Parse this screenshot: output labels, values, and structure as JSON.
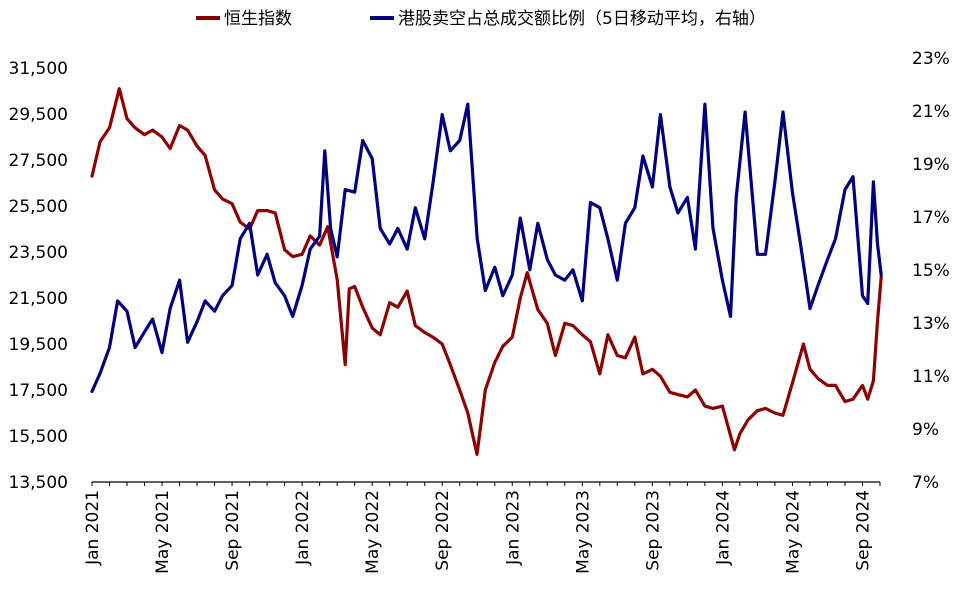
{
  "chart_data": {
    "type": "line",
    "title": "",
    "legend_position": "top",
    "grid": false,
    "x_axis": {
      "start": "2021-01",
      "end": "2024-10",
      "tick_labels": [
        "Jan 2021",
        "May 2021",
        "Sep 2021",
        "Jan 2022",
        "May 2022",
        "Sep 2022",
        "Jan 2023",
        "May 2023",
        "Sep 2023",
        "Jan 2024",
        "May 2024",
        "Sep 2024"
      ]
    },
    "y_left": {
      "min": 13500,
      "max": 31500,
      "tick_labels": [
        "31,500",
        "29,500",
        "27,500",
        "25,500",
        "23,500",
        "21,500",
        "19,500",
        "17,500",
        "15,500",
        "13,500"
      ]
    },
    "y_right": {
      "min": 7,
      "max": 23,
      "tick_labels": [
        "23%",
        "21%",
        "19%",
        "17%",
        "15%",
        "13%",
        "11%",
        "9%",
        "7%"
      ]
    },
    "series": [
      {
        "name": "恒生指数",
        "axis": "left",
        "color": "#8B0000",
        "points": [
          [
            "2021-01-01",
            26800
          ],
          [
            "2021-01-15",
            28300
          ],
          [
            "2021-02-01",
            28900
          ],
          [
            "2021-02-18",
            30600
          ],
          [
            "2021-03-01",
            29300
          ],
          [
            "2021-03-15",
            28900
          ],
          [
            "2021-04-01",
            28600
          ],
          [
            "2021-04-15",
            28800
          ],
          [
            "2021-05-01",
            28500
          ],
          [
            "2021-05-15",
            28000
          ],
          [
            "2021-06-01",
            29000
          ],
          [
            "2021-06-15",
            28800
          ],
          [
            "2021-07-01",
            28100
          ],
          [
            "2021-07-15",
            27700
          ],
          [
            "2021-08-01",
            26200
          ],
          [
            "2021-08-15",
            25800
          ],
          [
            "2021-09-01",
            25600
          ],
          [
            "2021-09-15",
            24800
          ],
          [
            "2021-10-01",
            24500
          ],
          [
            "2021-10-15",
            25300
          ],
          [
            "2021-11-01",
            25300
          ],
          [
            "2021-11-15",
            25200
          ],
          [
            "2021-12-01",
            23600
          ],
          [
            "2021-12-15",
            23300
          ],
          [
            "2022-01-01",
            23400
          ],
          [
            "2022-01-15",
            24200
          ],
          [
            "2022-02-01",
            23800
          ],
          [
            "2022-02-15",
            24600
          ],
          [
            "2022-03-01",
            22300
          ],
          [
            "2022-03-15",
            18600
          ],
          [
            "2022-03-22",
            21900
          ],
          [
            "2022-04-01",
            22000
          ],
          [
            "2022-04-15",
            21100
          ],
          [
            "2022-05-01",
            20200
          ],
          [
            "2022-05-15",
            19900
          ],
          [
            "2022-06-01",
            21300
          ],
          [
            "2022-06-15",
            21100
          ],
          [
            "2022-07-01",
            21800
          ],
          [
            "2022-07-15",
            20300
          ],
          [
            "2022-08-01",
            20000
          ],
          [
            "2022-08-15",
            19800
          ],
          [
            "2022-09-01",
            19500
          ],
          [
            "2022-09-15",
            18600
          ],
          [
            "2022-10-01",
            17500
          ],
          [
            "2022-10-15",
            16500
          ],
          [
            "2022-10-31",
            14700
          ],
          [
            "2022-11-15",
            17500
          ],
          [
            "2022-12-01",
            18700
          ],
          [
            "2022-12-15",
            19400
          ],
          [
            "2023-01-01",
            19800
          ],
          [
            "2023-01-15",
            21500
          ],
          [
            "2023-01-27",
            22600
          ],
          [
            "2023-02-15",
            21000
          ],
          [
            "2023-03-01",
            20400
          ],
          [
            "2023-03-15",
            19000
          ],
          [
            "2023-04-01",
            20400
          ],
          [
            "2023-04-15",
            20300
          ],
          [
            "2023-05-01",
            19900
          ],
          [
            "2023-05-15",
            19600
          ],
          [
            "2023-06-01",
            18200
          ],
          [
            "2023-06-15",
            19900
          ],
          [
            "2023-07-01",
            19000
          ],
          [
            "2023-07-15",
            18900
          ],
          [
            "2023-08-01",
            19800
          ],
          [
            "2023-08-15",
            18200
          ],
          [
            "2023-09-01",
            18400
          ],
          [
            "2023-09-15",
            18100
          ],
          [
            "2023-10-01",
            17400
          ],
          [
            "2023-10-15",
            17300
          ],
          [
            "2023-11-01",
            17200
          ],
          [
            "2023-11-15",
            17500
          ],
          [
            "2023-12-01",
            16800
          ],
          [
            "2023-12-15",
            16700
          ],
          [
            "2024-01-01",
            16800
          ],
          [
            "2024-01-22",
            14900
          ],
          [
            "2024-02-01",
            15600
          ],
          [
            "2024-02-15",
            16200
          ],
          [
            "2024-03-01",
            16600
          ],
          [
            "2024-03-15",
            16700
          ],
          [
            "2024-04-01",
            16500
          ],
          [
            "2024-04-15",
            16400
          ],
          [
            "2024-05-01",
            17800
          ],
          [
            "2024-05-20",
            19500
          ],
          [
            "2024-06-01",
            18400
          ],
          [
            "2024-06-15",
            18000
          ],
          [
            "2024-07-01",
            17700
          ],
          [
            "2024-07-15",
            17700
          ],
          [
            "2024-08-01",
            17000
          ],
          [
            "2024-08-15",
            17100
          ],
          [
            "2024-09-01",
            17700
          ],
          [
            "2024-09-10",
            17100
          ],
          [
            "2024-09-20",
            17900
          ],
          [
            "2024-09-27",
            20500
          ],
          [
            "2024-10-03",
            22400
          ]
        ]
      },
      {
        "name": "港股卖空占总成交额比例（5日移动平均，右轴）",
        "axis": "right",
        "color": "#00007F",
        "points": [
          [
            "2021-01-01",
            10.5
          ],
          [
            "2021-01-15",
            11.2
          ],
          [
            "2021-02-01",
            12.2
          ],
          [
            "2021-02-15",
            14.0
          ],
          [
            "2021-03-01",
            13.6
          ],
          [
            "2021-03-15",
            12.2
          ],
          [
            "2021-04-01",
            12.8
          ],
          [
            "2021-04-15",
            13.3
          ],
          [
            "2021-05-01",
            12.0
          ],
          [
            "2021-05-15",
            13.7
          ],
          [
            "2021-06-01",
            14.8
          ],
          [
            "2021-06-15",
            12.4
          ],
          [
            "2021-07-01",
            13.2
          ],
          [
            "2021-07-15",
            14.0
          ],
          [
            "2021-08-01",
            13.6
          ],
          [
            "2021-08-15",
            14.2
          ],
          [
            "2021-09-01",
            14.6
          ],
          [
            "2021-09-15",
            16.4
          ],
          [
            "2021-10-01",
            17.0
          ],
          [
            "2021-10-15",
            15.0
          ],
          [
            "2021-11-01",
            15.8
          ],
          [
            "2021-11-15",
            14.7
          ],
          [
            "2021-12-01",
            14.2
          ],
          [
            "2021-12-15",
            13.4
          ],
          [
            "2022-01-01",
            14.6
          ],
          [
            "2022-01-15",
            16.0
          ],
          [
            "2022-02-01",
            16.5
          ],
          [
            "2022-02-10",
            19.8
          ],
          [
            "2022-02-20",
            16.8
          ],
          [
            "2022-03-01",
            15.7
          ],
          [
            "2022-03-15",
            18.3
          ],
          [
            "2022-04-01",
            18.2
          ],
          [
            "2022-04-15",
            20.2
          ],
          [
            "2022-05-01",
            19.5
          ],
          [
            "2022-05-15",
            16.8
          ],
          [
            "2022-06-01",
            16.2
          ],
          [
            "2022-06-15",
            16.8
          ],
          [
            "2022-07-01",
            16.0
          ],
          [
            "2022-07-15",
            17.6
          ],
          [
            "2022-08-01",
            16.4
          ],
          [
            "2022-08-15",
            18.5
          ],
          [
            "2022-09-01",
            21.2
          ],
          [
            "2022-09-15",
            19.8
          ],
          [
            "2022-10-01",
            20.2
          ],
          [
            "2022-10-15",
            21.6
          ],
          [
            "2022-11-01",
            16.4
          ],
          [
            "2022-11-15",
            14.4
          ],
          [
            "2022-12-01",
            15.3
          ],
          [
            "2022-12-15",
            14.2
          ],
          [
            "2023-01-01",
            15.0
          ],
          [
            "2023-01-15",
            17.2
          ],
          [
            "2023-02-01",
            15.2
          ],
          [
            "2023-02-15",
            17.0
          ],
          [
            "2023-03-01",
            15.6
          ],
          [
            "2023-03-15",
            15.0
          ],
          [
            "2023-04-01",
            14.8
          ],
          [
            "2023-04-15",
            15.2
          ],
          [
            "2023-05-01",
            14.0
          ],
          [
            "2023-05-15",
            17.8
          ],
          [
            "2023-06-01",
            17.6
          ],
          [
            "2023-06-15",
            16.4
          ],
          [
            "2023-07-01",
            14.8
          ],
          [
            "2023-07-15",
            17.0
          ],
          [
            "2023-08-01",
            17.6
          ],
          [
            "2023-08-15",
            19.6
          ],
          [
            "2023-09-01",
            18.4
          ],
          [
            "2023-09-15",
            21.2
          ],
          [
            "2023-10-01",
            18.4
          ],
          [
            "2023-10-15",
            17.4
          ],
          [
            "2023-11-01",
            18.0
          ],
          [
            "2023-11-15",
            16.0
          ],
          [
            "2023-12-01",
            21.6
          ],
          [
            "2023-12-15",
            16.8
          ],
          [
            "2024-01-01",
            14.8
          ],
          [
            "2024-01-15",
            13.4
          ],
          [
            "2024-01-25",
            18.0
          ],
          [
            "2024-02-10",
            21.3
          ],
          [
            "2024-03-01",
            15.8
          ],
          [
            "2024-03-15",
            15.8
          ],
          [
            "2024-04-01",
            18.6
          ],
          [
            "2024-04-15",
            21.3
          ],
          [
            "2024-05-01",
            18.2
          ],
          [
            "2024-05-15",
            16.2
          ],
          [
            "2024-06-01",
            13.7
          ],
          [
            "2024-06-15",
            14.6
          ],
          [
            "2024-07-01",
            15.6
          ],
          [
            "2024-07-15",
            16.4
          ],
          [
            "2024-08-01",
            18.3
          ],
          [
            "2024-08-15",
            18.8
          ],
          [
            "2024-09-01",
            14.2
          ],
          [
            "2024-09-10",
            13.9
          ],
          [
            "2024-09-20",
            18.6
          ],
          [
            "2024-09-27",
            16.2
          ],
          [
            "2024-10-03",
            15.0
          ]
        ]
      }
    ]
  }
}
